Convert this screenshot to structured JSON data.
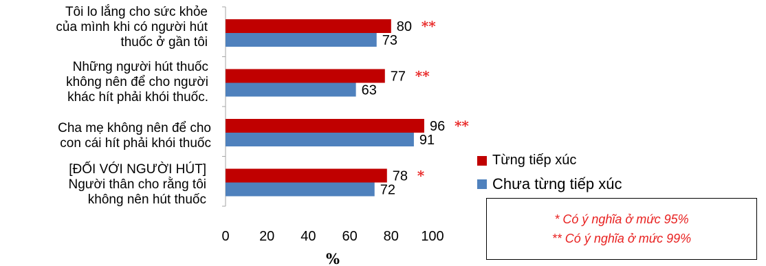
{
  "colors": {
    "series1": "#C00000",
    "series2": "#4F81BD",
    "sig": "#E8201F",
    "axis": "#A6A6A6"
  },
  "chart_data": {
    "type": "bar",
    "orientation": "horizontal",
    "xlabel": "%",
    "xlim": [
      0,
      100
    ],
    "xticks": [
      "0",
      "20",
      "40",
      "60",
      "80",
      "100"
    ],
    "categories": [
      [
        "Tôi lo lắng cho sức khỏe",
        "của mình khi có người hút",
        "thuốc ở gần tôi"
      ],
      [
        "Những người hút thuốc",
        "không nên để cho người",
        "khác hít phải khói thuốc."
      ],
      [
        "Cha mẹ không nên để cho",
        "con cái hít phải khói thuốc"
      ],
      [
        "[ĐỐI VỚI NGƯỜI HÚT]",
        "Người thân cho rằng tôi",
        "không nên hút thuốc"
      ]
    ],
    "series": [
      {
        "name": "Từng tiếp xúc",
        "values": [
          80,
          77,
          96,
          78
        ]
      },
      {
        "name": "Chưa từng tiếp xúc",
        "values": [
          73,
          63,
          91,
          72
        ]
      }
    ],
    "significance": [
      "**",
      "**",
      "**",
      "*"
    ]
  },
  "legend": {
    "item1": "Từng tiếp xúc",
    "item2": "Chưa từng tiếp xúc"
  },
  "note": {
    "line1": "* Có ý nghĩa ở mức 95%",
    "line2": "** Có ý nghĩa ở mức 99%"
  }
}
